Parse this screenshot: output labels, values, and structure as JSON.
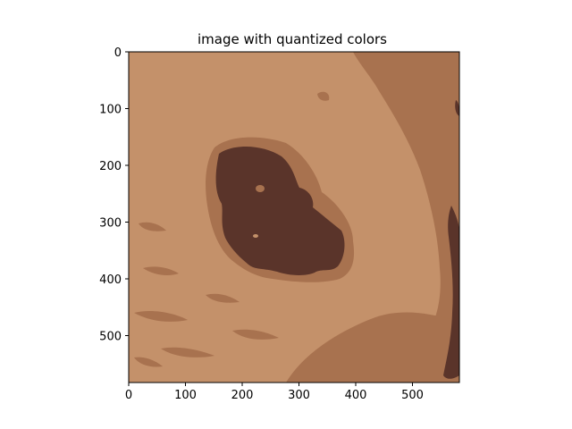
{
  "title": "image with quantized colors",
  "image": {
    "width": 583,
    "height": 583,
    "palette": {
      "light_skin": "#c4916a",
      "medium_skin": "#a8724f",
      "dark_lesion": "#5a342a"
    },
    "x_ticks": [
      "0",
      "100",
      "200",
      "300",
      "400",
      "500"
    ],
    "y_ticks": [
      "0",
      "100",
      "200",
      "300",
      "400",
      "500"
    ]
  }
}
